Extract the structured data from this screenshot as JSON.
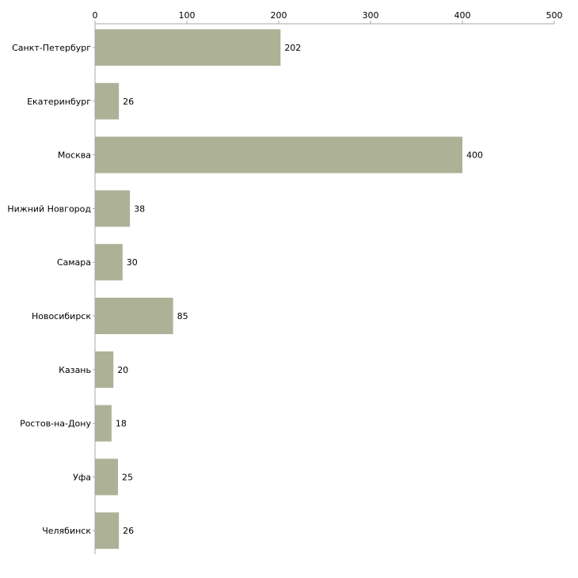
{
  "chart_data": {
    "type": "bar",
    "orientation": "horizontal",
    "title": "",
    "xlabel": "",
    "ylabel": "",
    "categories": [
      "Санкт-Петербург",
      "Екатеринбург",
      "Москва",
      "Нижний Новгород",
      "Самара",
      "Новосибирск",
      "Казань",
      "Ростов-на-Дону",
      "Уфа",
      "Челябинск"
    ],
    "values": [
      202,
      26,
      400,
      38,
      30,
      85,
      20,
      18,
      25,
      26
    ],
    "xlim": [
      0,
      500
    ],
    "ticks": [
      0,
      100,
      200,
      300,
      400,
      500
    ],
    "axis_position": "top",
    "grid": false,
    "legend": "none"
  },
  "colors": {
    "bar": "#adb196",
    "axis": "#a8a8a8",
    "text": "#000000"
  }
}
